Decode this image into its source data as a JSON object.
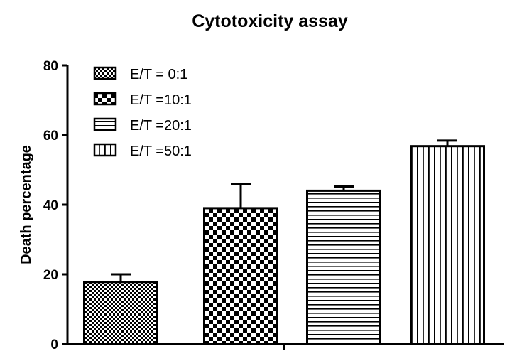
{
  "chart_data": {
    "type": "bar",
    "title": "Cytotoxicity assay",
    "xlabel": "",
    "ylabel": "Death percentage",
    "ylim": [
      0,
      80
    ],
    "yticks": [
      0,
      20,
      40,
      60,
      80
    ],
    "grid": false,
    "legend_position": "top-left",
    "series": [
      {
        "name": "E/T = 0:1",
        "value": 17.8,
        "error": 2.2,
        "pattern": "fine-checker"
      },
      {
        "name": "E/T =10:1",
        "value": 39.0,
        "error": 7.0,
        "pattern": "coarse-checker"
      },
      {
        "name": "E/T =20:1",
        "value": 44.0,
        "error": 1.2,
        "pattern": "horizontal-lines"
      },
      {
        "name": "E/T =50:1",
        "value": 56.8,
        "error": 1.6,
        "pattern": "vertical-lines"
      }
    ]
  }
}
